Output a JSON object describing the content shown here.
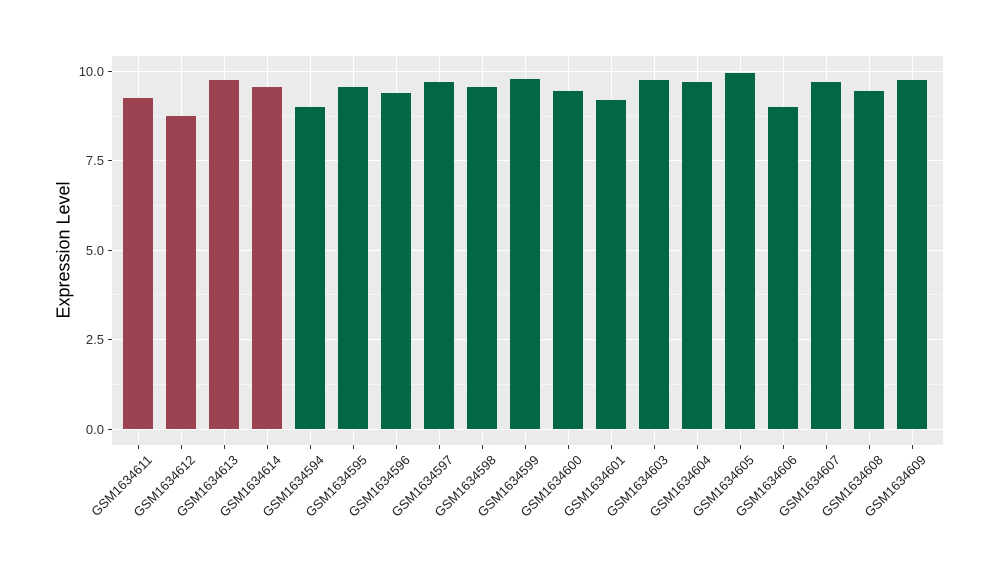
{
  "figure": {
    "background": "#FFFFFF"
  },
  "panel": {
    "background": "#EBEBEB",
    "grid_major_color": "#FFFFFF",
    "grid_minor_color": "#FFFFFF",
    "tick_color": "#333333"
  },
  "chart_data": {
    "type": "bar",
    "title": "",
    "xlabel": "",
    "ylabel": "Expression Level",
    "ylim": [
      0,
      10.45
    ],
    "yticks": [
      0.0,
      2.5,
      5.0,
      7.5,
      10.0
    ],
    "ytick_labels": [
      "0.0",
      "2.5",
      "5.0",
      "7.5",
      "10.0"
    ],
    "yminor_ticks": [
      1.25,
      3.75,
      6.25,
      8.75
    ],
    "grid": "on",
    "legend_position": "none",
    "x_tick_rotation_degrees": 45,
    "categories": [
      "GSM1634611",
      "GSM1634612",
      "GSM1634613",
      "GSM1634614",
      "GSM1634594",
      "GSM1634595",
      "GSM1634596",
      "GSM1634597",
      "GSM1634598",
      "GSM1634599",
      "GSM1634600",
      "GSM1634601",
      "GSM1634603",
      "GSM1634604",
      "GSM1634605",
      "GSM1634606",
      "GSM1634607",
      "GSM1634608",
      "GSM1634609"
    ],
    "values": [
      9.25,
      8.75,
      9.75,
      9.55,
      9.0,
      9.55,
      9.4,
      9.7,
      9.55,
      9.8,
      9.45,
      9.2,
      9.75,
      9.7,
      9.95,
      9.0,
      9.7,
      9.45,
      9.75
    ],
    "bar_group_index": [
      0,
      0,
      0,
      0,
      1,
      1,
      1,
      1,
      1,
      1,
      1,
      1,
      1,
      1,
      1,
      1,
      1,
      1,
      1
    ],
    "group_colors": [
      "#9C4351",
      "#026746"
    ]
  }
}
